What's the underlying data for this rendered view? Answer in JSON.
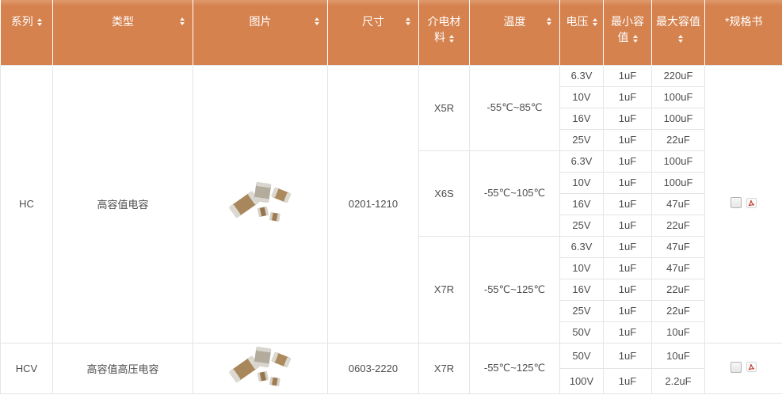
{
  "colors": {
    "header_bg": "#d5824e",
    "header_text": "#ffffff",
    "body_border": "#e4e4e4",
    "body_text": "#4d4d4d",
    "pdf_red": "#c0392b"
  },
  "table": {
    "headers": [
      {
        "label": "系列",
        "sortable": true
      },
      {
        "label": "类型",
        "sortable": true
      },
      {
        "label": "图片",
        "sortable": true
      },
      {
        "label": "尺寸",
        "sortable": true
      },
      {
        "label": "介电材料",
        "sortable": true
      },
      {
        "label": "温度",
        "sortable": true
      },
      {
        "label": "电压",
        "sortable": true
      },
      {
        "label": "最小容值",
        "sortable": true
      },
      {
        "label": "最大容值",
        "sortable": true
      },
      {
        "label": "*规格书",
        "sortable": false
      }
    ],
    "series": [
      {
        "series": "HC",
        "type": "高容值电容",
        "image": "capacitor-product-image",
        "size": "0201-1210",
        "datasheet": {
          "checkbox_checked": false,
          "icon": "pdf-icon"
        },
        "dielectrics": [
          {
            "material": "X5R",
            "temperature": "-55℃~85℃",
            "rows": [
              [
                "6.3V",
                "1uF",
                "220uF"
              ],
              [
                "10V",
                "1uF",
                "100uF"
              ],
              [
                "16V",
                "1uF",
                "100uF"
              ],
              [
                "25V",
                "1uF",
                "22uF"
              ]
            ]
          },
          {
            "material": "X6S",
            "temperature": "-55℃~105℃",
            "rows": [
              [
                "6.3V",
                "1uF",
                "100uF"
              ],
              [
                "10V",
                "1uF",
                "100uF"
              ],
              [
                "16V",
                "1uF",
                "47uF"
              ],
              [
                "25V",
                "1uF",
                "22uF"
              ]
            ]
          },
          {
            "material": "X7R",
            "temperature": "-55℃~125℃",
            "rows": [
              [
                "6.3V",
                "1uF",
                "47uF"
              ],
              [
                "10V",
                "1uF",
                "47uF"
              ],
              [
                "16V",
                "1uF",
                "22uF"
              ],
              [
                "25V",
                "1uF",
                "22uF"
              ],
              [
                "50V",
                "1uF",
                "10uF"
              ]
            ]
          }
        ]
      },
      {
        "series": "HCV",
        "type": "高容值高压电容",
        "image": "capacitor-product-image",
        "size": "0603-2220",
        "datasheet": {
          "checkbox_checked": false,
          "icon": "pdf-icon"
        },
        "dielectrics": [
          {
            "material": "X7R",
            "temperature": "-55℃~125℃",
            "rows": [
              [
                "50V",
                "1uF",
                "10uF"
              ],
              [
                "100V",
                "1uF",
                "2.2uF"
              ]
            ]
          }
        ]
      }
    ]
  }
}
